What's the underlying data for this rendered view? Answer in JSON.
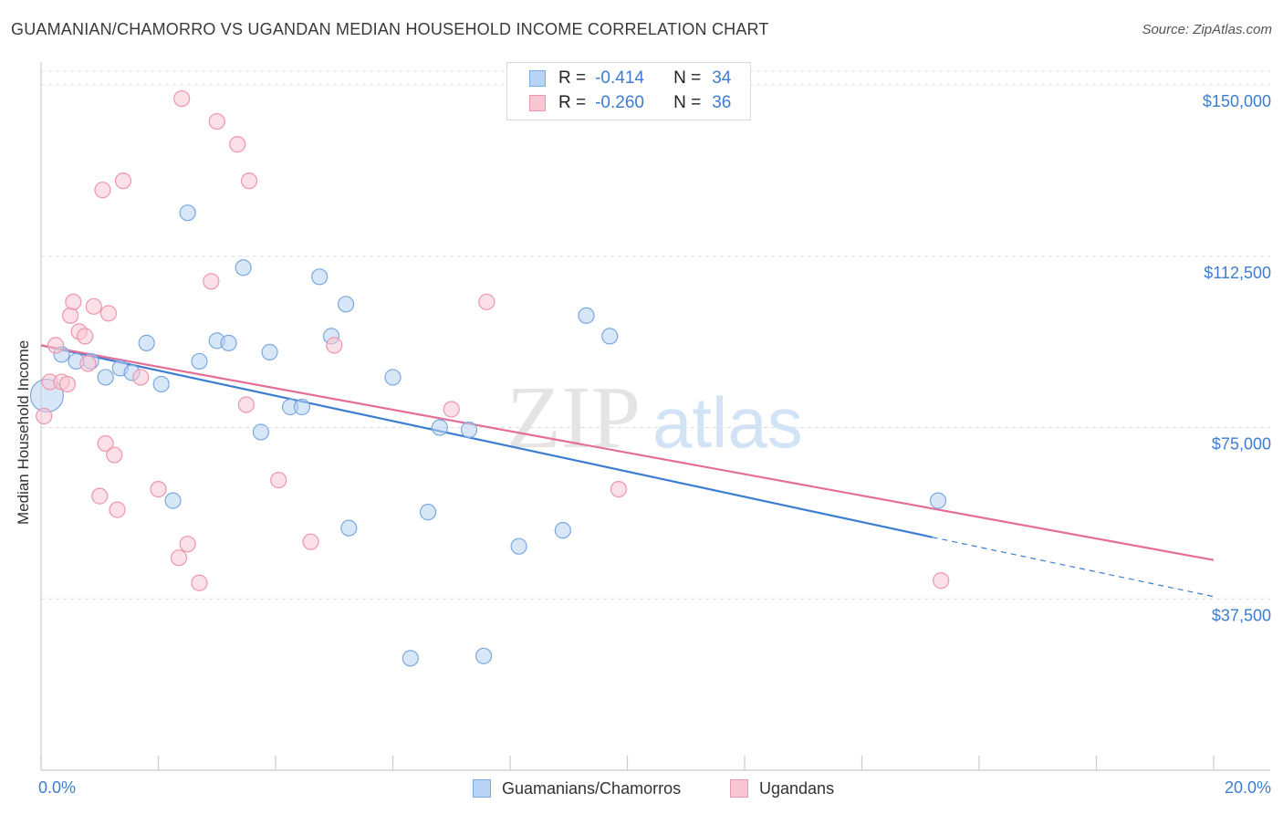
{
  "title": "GUAMANIAN/CHAMORRO VS UGANDAN MEDIAN HOUSEHOLD INCOME CORRELATION CHART",
  "source": "Source: ZipAtlas.com",
  "watermark": {
    "zip": "ZIP",
    "atlas": "atlas"
  },
  "colors": {
    "blue_fill": "#b8d3f3",
    "blue_stroke": "#7aa8e0",
    "blue_line": "#3d7dd1",
    "pink_fill": "#f9c6d3",
    "pink_stroke": "#ef95ad",
    "pink_line": "#e46e96",
    "axis_text": "#3d7dd1",
    "grid": "#dddddd"
  },
  "legend": {
    "rows": [
      {
        "r_label": "R =",
        "r_value": "-0.414",
        "n_label": "N =",
        "n_value": "34"
      },
      {
        "r_label": "R =",
        "r_value": "-0.260",
        "n_label": "N =",
        "n_value": "36"
      }
    ]
  },
  "bottom_legend": {
    "series1": "Guamanians/Chamorros",
    "series2": "Ugandans"
  },
  "chart_data": {
    "type": "scatter",
    "title": "GUAMANIAN/CHAMORRO VS UGANDAN MEDIAN HOUSEHOLD INCOME CORRELATION CHART",
    "xlabel": "",
    "ylabel": "Median Household Income",
    "xlim": [
      0,
      20
    ],
    "ylim": [
      0,
      153000
    ],
    "x_tick_labels": [
      "0.0%",
      "20.0%"
    ],
    "y_ticks": [
      37500,
      75000,
      112500,
      150000
    ],
    "y_tick_labels": [
      "$37,500",
      "$75,000",
      "$112,500",
      "$150,000"
    ],
    "grid": true,
    "series": [
      {
        "name": "Guamanians/Chamorros",
        "color": "blue",
        "points": [
          {
            "x": 0.1,
            "y": 82000,
            "big": true
          },
          {
            "x": 0.35,
            "y": 91000
          },
          {
            "x": 0.6,
            "y": 89500
          },
          {
            "x": 0.85,
            "y": 89500
          },
          {
            "x": 1.1,
            "y": 86000
          },
          {
            "x": 1.35,
            "y": 88000
          },
          {
            "x": 1.55,
            "y": 87000
          },
          {
            "x": 1.8,
            "y": 93500
          },
          {
            "x": 2.05,
            "y": 84500
          },
          {
            "x": 2.25,
            "y": 59000
          },
          {
            "x": 2.5,
            "y": 122000
          },
          {
            "x": 2.7,
            "y": 89500
          },
          {
            "x": 3.0,
            "y": 94000
          },
          {
            "x": 3.2,
            "y": 93500
          },
          {
            "x": 3.45,
            "y": 110000
          },
          {
            "x": 3.75,
            "y": 74000
          },
          {
            "x": 3.9,
            "y": 91500
          },
          {
            "x": 4.25,
            "y": 79500
          },
          {
            "x": 4.45,
            "y": 79500
          },
          {
            "x": 4.75,
            "y": 108000
          },
          {
            "x": 4.95,
            "y": 95000
          },
          {
            "x": 5.25,
            "y": 53000
          },
          {
            "x": 5.2,
            "y": 102000
          },
          {
            "x": 6.0,
            "y": 86000
          },
          {
            "x": 6.3,
            "y": 24500
          },
          {
            "x": 6.6,
            "y": 56500
          },
          {
            "x": 6.8,
            "y": 75000
          },
          {
            "x": 7.3,
            "y": 74500
          },
          {
            "x": 7.55,
            "y": 25000
          },
          {
            "x": 8.15,
            "y": 49000
          },
          {
            "x": 8.9,
            "y": 52500
          },
          {
            "x": 9.3,
            "y": 99500
          },
          {
            "x": 9.7,
            "y": 95000
          },
          {
            "x": 15.3,
            "y": 59000
          }
        ],
        "trend": {
          "x0": 0.0,
          "y0": 93000,
          "x1": 15.2,
          "y1": 51000,
          "dash_x1": 20.0,
          "dash_y1": 38000
        }
      },
      {
        "name": "Ugandans",
        "color": "pink",
        "points": [
          {
            "x": 0.05,
            "y": 77500
          },
          {
            "x": 0.15,
            "y": 85000
          },
          {
            "x": 0.25,
            "y": 93000
          },
          {
            "x": 0.35,
            "y": 85000
          },
          {
            "x": 0.45,
            "y": 84500
          },
          {
            "x": 0.5,
            "y": 99500
          },
          {
            "x": 0.55,
            "y": 102500
          },
          {
            "x": 0.65,
            "y": 96000
          },
          {
            "x": 0.75,
            "y": 95000
          },
          {
            "x": 0.8,
            "y": 89000
          },
          {
            "x": 0.9,
            "y": 101500
          },
          {
            "x": 1.0,
            "y": 60000
          },
          {
            "x": 1.05,
            "y": 127000
          },
          {
            "x": 1.1,
            "y": 71500
          },
          {
            "x": 1.15,
            "y": 100000
          },
          {
            "x": 1.25,
            "y": 69000
          },
          {
            "x": 1.3,
            "y": 57000
          },
          {
            "x": 1.4,
            "y": 129000
          },
          {
            "x": 1.7,
            "y": 86000
          },
          {
            "x": 2.0,
            "y": 61500
          },
          {
            "x": 2.35,
            "y": 46500
          },
          {
            "x": 2.4,
            "y": 147000
          },
          {
            "x": 2.5,
            "y": 49500
          },
          {
            "x": 2.7,
            "y": 41000
          },
          {
            "x": 2.9,
            "y": 107000
          },
          {
            "x": 3.0,
            "y": 142000
          },
          {
            "x": 3.35,
            "y": 137000
          },
          {
            "x": 3.5,
            "y": 80000
          },
          {
            "x": 3.55,
            "y": 129000
          },
          {
            "x": 4.05,
            "y": 63500
          },
          {
            "x": 4.6,
            "y": 50000
          },
          {
            "x": 5.0,
            "y": 93000
          },
          {
            "x": 7.0,
            "y": 79000
          },
          {
            "x": 7.6,
            "y": 102500
          },
          {
            "x": 9.85,
            "y": 61500
          },
          {
            "x": 15.35,
            "y": 41500
          }
        ],
        "trend": {
          "x0": 0.0,
          "y0": 93000,
          "x1": 20.0,
          "y1": 46000
        }
      }
    ]
  }
}
